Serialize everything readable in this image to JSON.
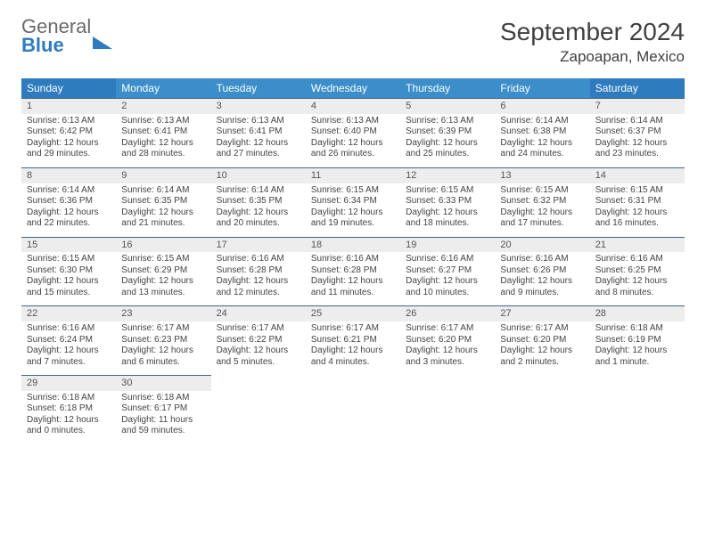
{
  "logo": {
    "line1": "General",
    "line2": "Blue"
  },
  "title": "September 2024",
  "location": "Zapoapan, Mexico",
  "header_bg": "#3c8ecb",
  "header_bg_weekend": "#2f7bbf",
  "row_border_color": "#406882",
  "daynum_bg": "#ededed",
  "text_color": "#404040",
  "weekdays": [
    "Sunday",
    "Monday",
    "Tuesday",
    "Wednesday",
    "Thursday",
    "Friday",
    "Saturday"
  ],
  "weeks": [
    [
      {
        "n": "1",
        "sr": "6:13 AM",
        "ss": "6:42 PM",
        "dl": "12 hours and 29 minutes."
      },
      {
        "n": "2",
        "sr": "6:13 AM",
        "ss": "6:41 PM",
        "dl": "12 hours and 28 minutes."
      },
      {
        "n": "3",
        "sr": "6:13 AM",
        "ss": "6:41 PM",
        "dl": "12 hours and 27 minutes."
      },
      {
        "n": "4",
        "sr": "6:13 AM",
        "ss": "6:40 PM",
        "dl": "12 hours and 26 minutes."
      },
      {
        "n": "5",
        "sr": "6:13 AM",
        "ss": "6:39 PM",
        "dl": "12 hours and 25 minutes."
      },
      {
        "n": "6",
        "sr": "6:14 AM",
        "ss": "6:38 PM",
        "dl": "12 hours and 24 minutes."
      },
      {
        "n": "7",
        "sr": "6:14 AM",
        "ss": "6:37 PM",
        "dl": "12 hours and 23 minutes."
      }
    ],
    [
      {
        "n": "8",
        "sr": "6:14 AM",
        "ss": "6:36 PM",
        "dl": "12 hours and 22 minutes."
      },
      {
        "n": "9",
        "sr": "6:14 AM",
        "ss": "6:35 PM",
        "dl": "12 hours and 21 minutes."
      },
      {
        "n": "10",
        "sr": "6:14 AM",
        "ss": "6:35 PM",
        "dl": "12 hours and 20 minutes."
      },
      {
        "n": "11",
        "sr": "6:15 AM",
        "ss": "6:34 PM",
        "dl": "12 hours and 19 minutes."
      },
      {
        "n": "12",
        "sr": "6:15 AM",
        "ss": "6:33 PM",
        "dl": "12 hours and 18 minutes."
      },
      {
        "n": "13",
        "sr": "6:15 AM",
        "ss": "6:32 PM",
        "dl": "12 hours and 17 minutes."
      },
      {
        "n": "14",
        "sr": "6:15 AM",
        "ss": "6:31 PM",
        "dl": "12 hours and 16 minutes."
      }
    ],
    [
      {
        "n": "15",
        "sr": "6:15 AM",
        "ss": "6:30 PM",
        "dl": "12 hours and 15 minutes."
      },
      {
        "n": "16",
        "sr": "6:15 AM",
        "ss": "6:29 PM",
        "dl": "12 hours and 13 minutes."
      },
      {
        "n": "17",
        "sr": "6:16 AM",
        "ss": "6:28 PM",
        "dl": "12 hours and 12 minutes."
      },
      {
        "n": "18",
        "sr": "6:16 AM",
        "ss": "6:28 PM",
        "dl": "12 hours and 11 minutes."
      },
      {
        "n": "19",
        "sr": "6:16 AM",
        "ss": "6:27 PM",
        "dl": "12 hours and 10 minutes."
      },
      {
        "n": "20",
        "sr": "6:16 AM",
        "ss": "6:26 PM",
        "dl": "12 hours and 9 minutes."
      },
      {
        "n": "21",
        "sr": "6:16 AM",
        "ss": "6:25 PM",
        "dl": "12 hours and 8 minutes."
      }
    ],
    [
      {
        "n": "22",
        "sr": "6:16 AM",
        "ss": "6:24 PM",
        "dl": "12 hours and 7 minutes."
      },
      {
        "n": "23",
        "sr": "6:17 AM",
        "ss": "6:23 PM",
        "dl": "12 hours and 6 minutes."
      },
      {
        "n": "24",
        "sr": "6:17 AM",
        "ss": "6:22 PM",
        "dl": "12 hours and 5 minutes."
      },
      {
        "n": "25",
        "sr": "6:17 AM",
        "ss": "6:21 PM",
        "dl": "12 hours and 4 minutes."
      },
      {
        "n": "26",
        "sr": "6:17 AM",
        "ss": "6:20 PM",
        "dl": "12 hours and 3 minutes."
      },
      {
        "n": "27",
        "sr": "6:17 AM",
        "ss": "6:20 PM",
        "dl": "12 hours and 2 minutes."
      },
      {
        "n": "28",
        "sr": "6:18 AM",
        "ss": "6:19 PM",
        "dl": "12 hours and 1 minute."
      }
    ],
    [
      {
        "n": "29",
        "sr": "6:18 AM",
        "ss": "6:18 PM",
        "dl": "12 hours and 0 minutes."
      },
      {
        "n": "30",
        "sr": "6:18 AM",
        "ss": "6:17 PM",
        "dl": "11 hours and 59 minutes."
      },
      null,
      null,
      null,
      null,
      null
    ]
  ],
  "labels": {
    "sunrise": "Sunrise: ",
    "sunset": "Sunset: ",
    "daylight": "Daylight: "
  }
}
